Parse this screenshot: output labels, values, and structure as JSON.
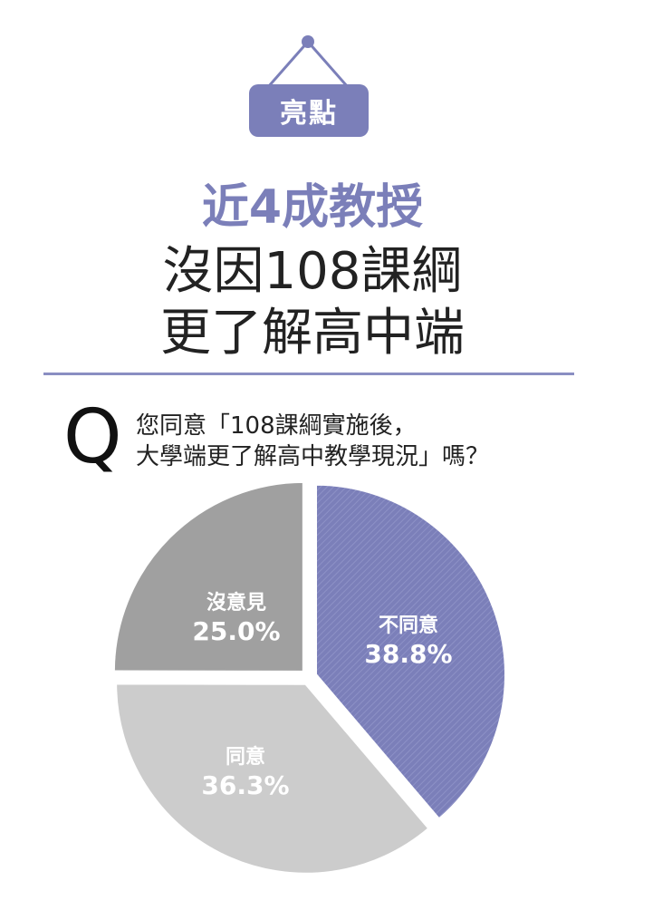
{
  "badge": {
    "text": "亮點"
  },
  "headline": {
    "line1": "近4成教授",
    "line2": "沒因108課綱",
    "line3": "更了解高中端"
  },
  "question": {
    "marker": "Q",
    "line1": "您同意「108課綱實施後，",
    "line2": "大學端更了解高中教學現況」嗎？"
  },
  "colors": {
    "accent": "#7b7fb9",
    "disagree": "#7b7fb9",
    "agree": "#cccccc",
    "no_opinion": "#a0a0a0"
  },
  "chart_data": {
    "type": "pie",
    "title": "",
    "slices": [
      {
        "label": "不同意",
        "value": 38.8,
        "display": "38.8%",
        "color": "#7b7fb9",
        "hatched": true
      },
      {
        "label": "同意",
        "value": 36.3,
        "display": "36.3%",
        "color": "#cccccc",
        "hatched": false
      },
      {
        "label": "沒意見",
        "value": 25.0,
        "display": "25.0%",
        "color": "#a0a0a0",
        "hatched": false
      }
    ],
    "start_angle": "top (12 o'clock), clockwise",
    "legend": "none (labels inside slices)"
  }
}
